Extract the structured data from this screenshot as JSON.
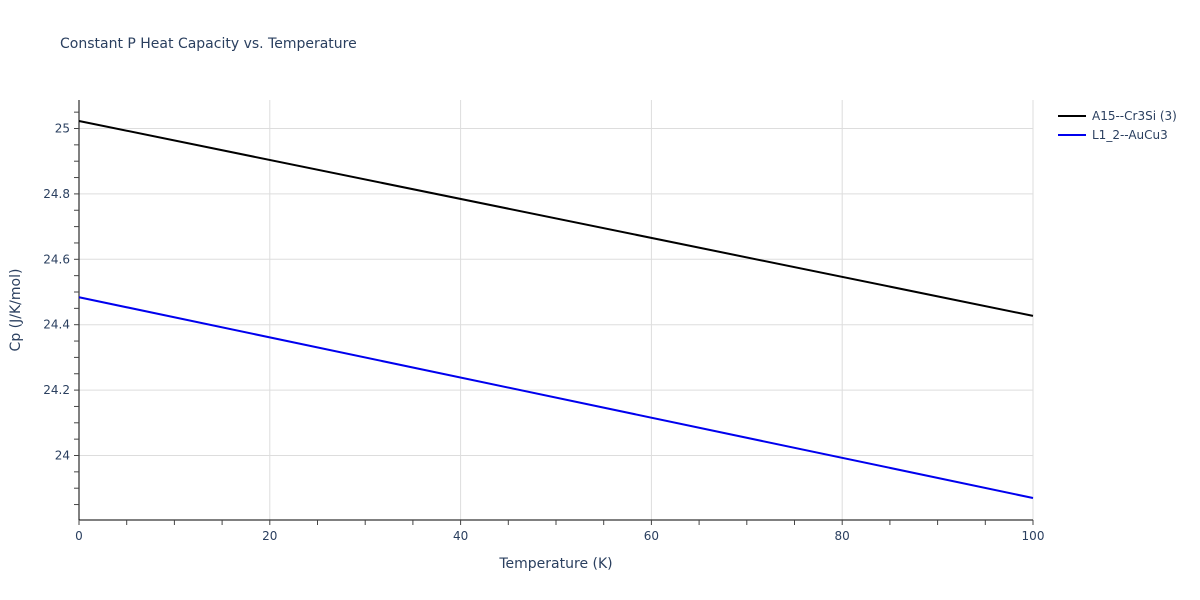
{
  "chart_data": {
    "type": "line",
    "title": "Constant P Heat Capacity vs. Temperature",
    "xlabel": "Temperature (K)",
    "ylabel": "Cp (J/K/mol)",
    "xlim": [
      0,
      100
    ],
    "ylim": [
      23.82,
      25.09
    ],
    "x_ticks": [
      "0",
      "20",
      "40",
      "60",
      "80",
      "100"
    ],
    "y_ticks": [
      "24",
      "24.2",
      "24.4",
      "24.6",
      "24.8",
      "25"
    ],
    "grid": true,
    "legend_position": "top-right outside",
    "series": [
      {
        "name": "A15--Cr3Si (3)",
        "color": "#000000",
        "x": [
          0,
          100
        ],
        "values": [
          25.023,
          24.427
        ]
      },
      {
        "name": "L1_2--AuCu3",
        "color": "#0000ee",
        "x": [
          0,
          100
        ],
        "values": [
          24.484,
          23.87
        ]
      }
    ]
  }
}
